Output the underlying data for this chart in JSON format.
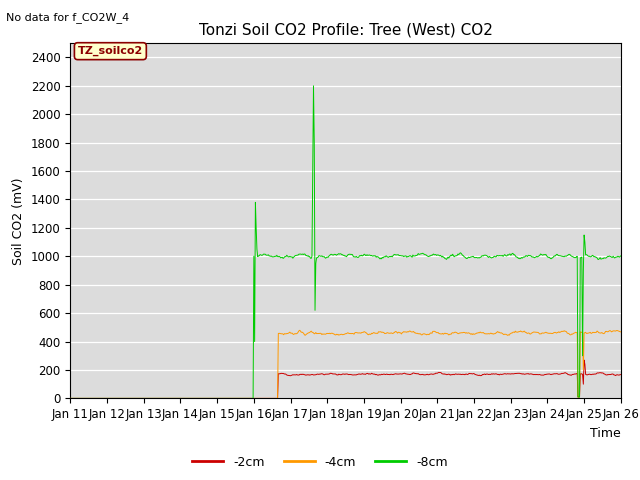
{
  "title": "Tonzi Soil CO2 Profile: Tree (West) CO2",
  "top_left_note": "No data for f_CO2W_4",
  "ylabel": "Soil CO2 (mV)",
  "xlabel": "Time",
  "ylim": [
    0,
    2500
  ],
  "plot_bg_color": "#dcdcdc",
  "fig_bg_color": "#ffffff",
  "legend_box_label": "TZ_soilco2",
  "legend_box_bg": "#ffffcc",
  "legend_box_edge": "#8b0000",
  "series_red_label": "-2cm",
  "series_red_color": "#cc0000",
  "series_red_mean": 170,
  "series_red_noise": 12,
  "series_red_start": 16.65,
  "series_orange_label": "-4cm",
  "series_orange_color": "#ff9900",
  "series_orange_mean": 460,
  "series_orange_noise": 20,
  "series_orange_start": 16.65,
  "series_green_label": "-8cm",
  "series_green_color": "#00cc00",
  "series_green_mean": 1000,
  "series_green_noise": 25,
  "series_green_start": 16.0,
  "x_tick_labels": [
    "Jan 11",
    "Jan 12",
    "Jan 13",
    "Jan 14",
    "Jan 15",
    "Jan 16",
    "Jan 17",
    "Jan 18",
    "Jan 19",
    "Jan 20",
    "Jan 21",
    "Jan 22",
    "Jan 23",
    "Jan 24",
    "Jan 25",
    "Jan 26"
  ],
  "x_tick_days": [
    11,
    12,
    13,
    14,
    15,
    16,
    17,
    18,
    19,
    20,
    21,
    22,
    23,
    24,
    25,
    26
  ]
}
